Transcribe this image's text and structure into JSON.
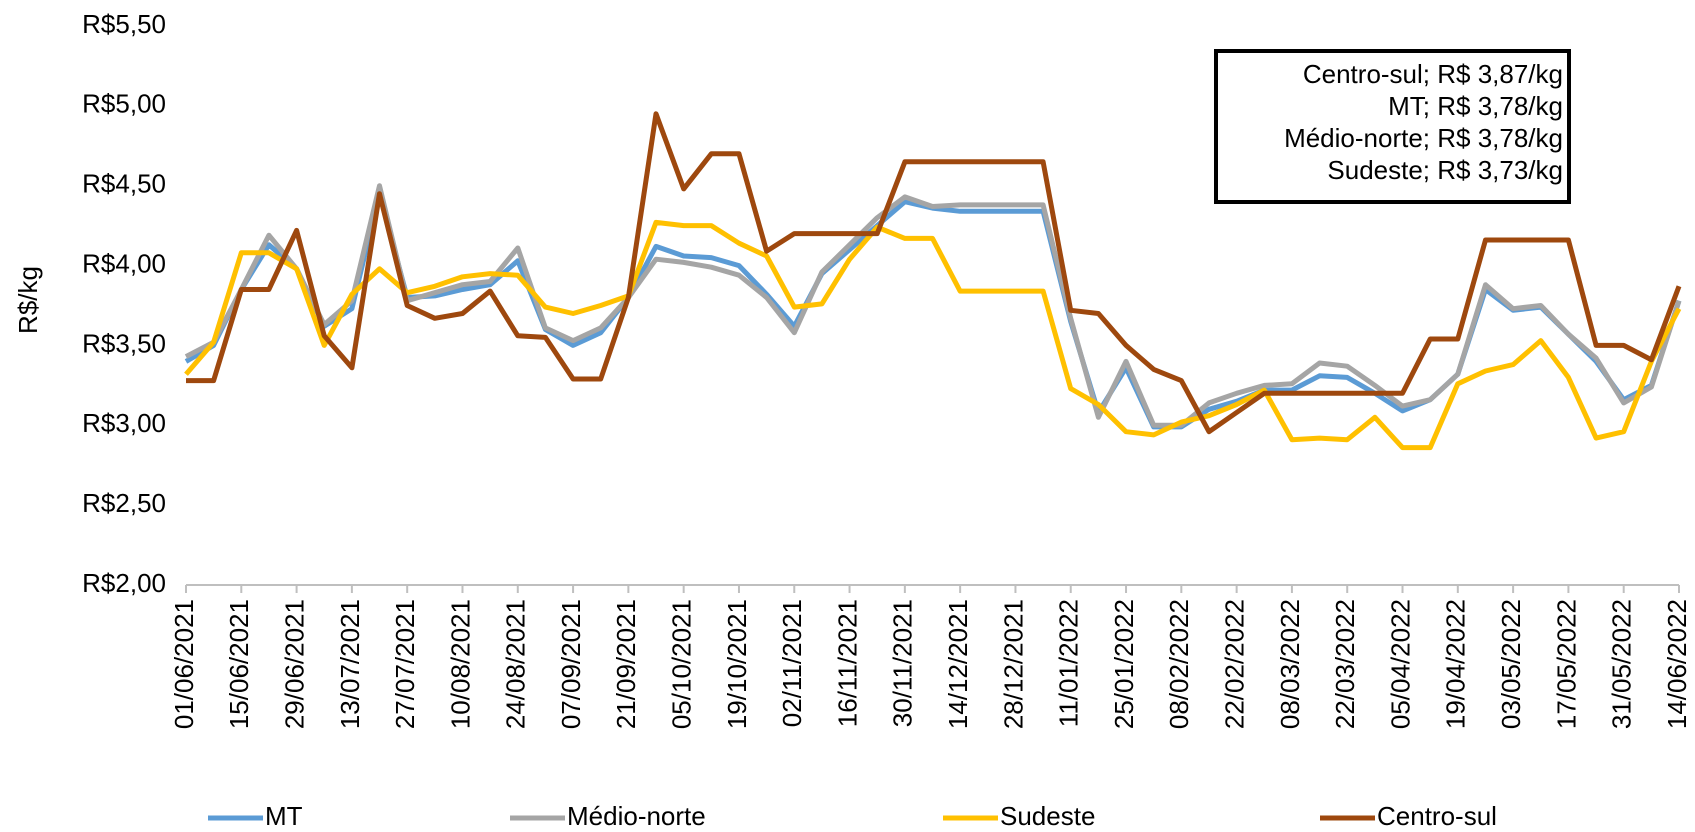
{
  "chart_data": {
    "type": "line",
    "y_label": "R$/kg",
    "categories": [
      "01/06/2021",
      null,
      "15/06/2021",
      null,
      "29/06/2021",
      null,
      "13/07/2021",
      null,
      "27/07/2021",
      null,
      "10/08/2021",
      null,
      "24/08/2021",
      null,
      "07/09/2021",
      null,
      "21/09/2021",
      null,
      "05/10/2021",
      null,
      "19/10/2021",
      null,
      "02/11/2021",
      null,
      "16/11/2021",
      null,
      "30/11/2021",
      null,
      "14/12/2021",
      null,
      "28/12/2021",
      null,
      "11/01/2022",
      null,
      "25/01/2022",
      null,
      "08/02/2022",
      null,
      "22/02/2022",
      null,
      "08/03/2022",
      null,
      "22/03/2022",
      null,
      "05/04/2022",
      null,
      "19/04/2022",
      null,
      "03/05/2022",
      null,
      "17/05/2022",
      null,
      "31/05/2022",
      null,
      "14/06/2022"
    ],
    "series": [
      {
        "name": "MT",
        "color": "#5b9bd5",
        "values": [
          3.4,
          3.5,
          3.85,
          4.13,
          3.98,
          3.62,
          3.73,
          4.45,
          3.8,
          3.81,
          3.85,
          3.88,
          4.03,
          3.6,
          3.5,
          3.58,
          3.8,
          4.12,
          4.06,
          4.05,
          4.0,
          3.82,
          3.62,
          3.95,
          4.1,
          4.25,
          4.4,
          4.36,
          4.34,
          4.34,
          4.34,
          4.34,
          3.65,
          3.08,
          3.36,
          2.99,
          2.99,
          3.1,
          3.15,
          3.22,
          3.22,
          3.31,
          3.3,
          3.2,
          3.09,
          3.16,
          3.32,
          3.85,
          3.72,
          3.74,
          3.57,
          3.4,
          3.16,
          3.25,
          3.78
        ]
      },
      {
        "name": "Médio-norte",
        "color": "#a5a5a5",
        "values": [
          3.43,
          3.52,
          3.85,
          4.19,
          3.98,
          3.63,
          3.78,
          4.5,
          3.78,
          3.83,
          3.88,
          3.9,
          4.11,
          3.61,
          3.53,
          3.61,
          3.8,
          4.04,
          4.02,
          3.99,
          3.94,
          3.8,
          3.58,
          3.96,
          4.13,
          4.3,
          4.43,
          4.37,
          4.38,
          4.38,
          4.38,
          4.38,
          3.67,
          3.05,
          3.4,
          3.0,
          3.0,
          3.14,
          3.2,
          3.25,
          3.26,
          3.39,
          3.37,
          3.25,
          3.12,
          3.16,
          3.32,
          3.88,
          3.73,
          3.75,
          3.57,
          3.42,
          3.14,
          3.24,
          3.78
        ]
      },
      {
        "name": "Sudeste",
        "color": "#ffc000",
        "values": [
          3.32,
          3.52,
          4.08,
          4.08,
          3.98,
          3.5,
          3.82,
          3.98,
          3.83,
          3.87,
          3.93,
          3.95,
          3.94,
          3.74,
          3.7,
          3.75,
          3.81,
          4.27,
          4.25,
          4.25,
          4.14,
          4.06,
          3.74,
          3.76,
          4.04,
          4.24,
          4.17,
          4.17,
          3.84,
          3.84,
          3.84,
          3.84,
          3.23,
          3.13,
          2.96,
          2.94,
          3.02,
          3.06,
          3.13,
          3.22,
          2.91,
          2.92,
          2.91,
          3.05,
          2.86,
          2.86,
          3.26,
          3.34,
          3.38,
          3.53,
          3.3,
          2.92,
          2.96,
          3.4,
          3.73
        ]
      },
      {
        "name": "Centro-sul",
        "color": "#9e480e",
        "values": [
          3.28,
          3.28,
          3.85,
          3.85,
          4.22,
          3.56,
          3.36,
          4.45,
          3.75,
          3.67,
          3.7,
          3.84,
          3.56,
          3.55,
          3.29,
          3.29,
          3.8,
          4.95,
          4.48,
          4.7,
          4.7,
          4.09,
          4.2,
          4.2,
          4.2,
          4.2,
          4.65,
          4.65,
          4.65,
          4.65,
          4.65,
          4.65,
          3.72,
          3.7,
          3.5,
          3.35,
          3.28,
          2.96,
          3.08,
          3.2,
          3.2,
          3.2,
          3.2,
          3.2,
          3.2,
          3.54,
          3.54,
          4.16,
          4.16,
          4.16,
          4.16,
          3.5,
          3.5,
          3.41,
          3.87
        ]
      }
    ],
    "ylim": [
      2.0,
      5.5
    ],
    "yticks": [
      {
        "value": 2.0,
        "label": "R$2,00"
      },
      {
        "value": 2.5,
        "label": "R$2,50"
      },
      {
        "value": 3.0,
        "label": "R$3,00"
      },
      {
        "value": 3.5,
        "label": "R$3,50"
      },
      {
        "value": 4.0,
        "label": "R$4,00"
      },
      {
        "value": 4.5,
        "label": "R$4,50"
      },
      {
        "value": 5.0,
        "label": "R$5,00"
      },
      {
        "value": 5.5,
        "label": "R$5,50"
      }
    ],
    "grid": false,
    "legend": "bottom",
    "annotations": [
      "Centro-sul; R$ 3,87/kg",
      "MT; R$ 3,78/kg",
      "Médio-norte; R$ 3,78/kg",
      "Sudeste; R$ 3,73/kg"
    ]
  }
}
